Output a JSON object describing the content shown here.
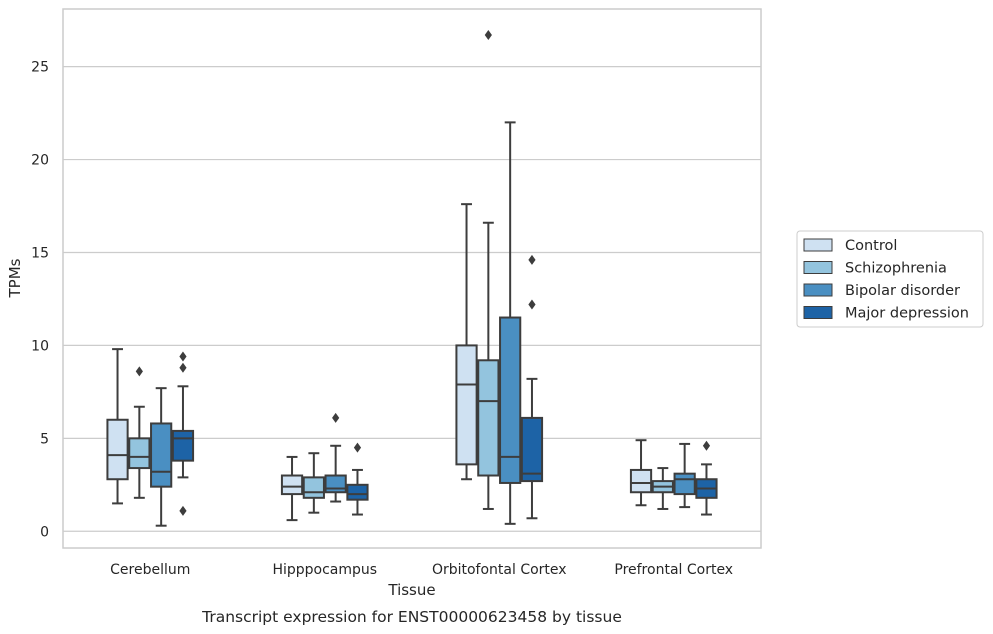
{
  "chart_data": {
    "type": "boxplot",
    "title": "",
    "caption": "Transcript expression for ENST00000623458 by tissue",
    "xlabel": "Tissue",
    "ylabel": "TPMs",
    "ylim": [
      -0.9,
      28.1
    ],
    "yticks": [
      0,
      5,
      10,
      15,
      20,
      25
    ],
    "grid": "horizontal",
    "legend_position": "right",
    "categories": [
      "Cerebellum",
      "Hipppocampus",
      "Orbitofontal Cortex",
      "Prefrontal Cortex"
    ],
    "series": [
      {
        "name": "Control",
        "color": "#cfe1f2",
        "boxes": [
          {
            "whislo": 1.5,
            "q1": 2.8,
            "med": 4.1,
            "q3": 6.0,
            "whishi": 9.8,
            "fliers": []
          },
          {
            "whislo": 0.6,
            "q1": 2.0,
            "med": 2.4,
            "q3": 3.0,
            "whishi": 4.0,
            "fliers": []
          },
          {
            "whislo": 2.8,
            "q1": 3.6,
            "med": 7.9,
            "q3": 10.0,
            "whishi": 17.6,
            "fliers": []
          },
          {
            "whislo": 1.4,
            "q1": 2.1,
            "med": 2.6,
            "q3": 3.3,
            "whishi": 4.9,
            "fliers": []
          }
        ]
      },
      {
        "name": "Schizophrenia",
        "color": "#93c4de",
        "boxes": [
          {
            "whislo": 1.8,
            "q1": 3.4,
            "med": 4.0,
            "q3": 5.0,
            "whishi": 6.7,
            "fliers": [
              8.6
            ]
          },
          {
            "whislo": 1.0,
            "q1": 1.8,
            "med": 2.1,
            "q3": 2.9,
            "whishi": 4.2,
            "fliers": []
          },
          {
            "whislo": 1.2,
            "q1": 3.0,
            "med": 7.0,
            "q3": 9.2,
            "whishi": 16.6,
            "fliers": [
              26.7
            ]
          },
          {
            "whislo": 1.2,
            "q1": 2.1,
            "med": 2.4,
            "q3": 2.7,
            "whishi": 3.4,
            "fliers": []
          }
        ]
      },
      {
        "name": "Bipolar disorder",
        "color": "#4a8fc2",
        "boxes": [
          {
            "whislo": 0.3,
            "q1": 2.4,
            "med": 3.2,
            "q3": 5.8,
            "whishi": 7.7,
            "fliers": []
          },
          {
            "whislo": 1.6,
            "q1": 2.1,
            "med": 2.3,
            "q3": 3.0,
            "whishi": 4.6,
            "fliers": [
              6.1
            ]
          },
          {
            "whislo": 0.4,
            "q1": 2.6,
            "med": 4.0,
            "q3": 11.5,
            "whishi": 22.0,
            "fliers": []
          },
          {
            "whislo": 1.3,
            "q1": 2.0,
            "med": 2.8,
            "q3": 3.1,
            "whishi": 4.7,
            "fliers": []
          }
        ]
      },
      {
        "name": "Major depression",
        "color": "#1d63a6",
        "boxes": [
          {
            "whislo": 2.9,
            "q1": 3.8,
            "med": 5.0,
            "q3": 5.4,
            "whishi": 7.8,
            "fliers": [
              9.4,
              8.8,
              1.1
            ]
          },
          {
            "whislo": 0.9,
            "q1": 1.7,
            "med": 2.0,
            "q3": 2.5,
            "whishi": 3.3,
            "fliers": [
              4.5
            ]
          },
          {
            "whislo": 0.7,
            "q1": 2.7,
            "med": 3.1,
            "q3": 6.1,
            "whishi": 8.2,
            "fliers": [
              14.6,
              12.2
            ]
          },
          {
            "whislo": 0.9,
            "q1": 1.8,
            "med": 2.3,
            "q3": 2.8,
            "whishi": 3.6,
            "fliers": [
              4.6
            ]
          }
        ]
      }
    ]
  }
}
